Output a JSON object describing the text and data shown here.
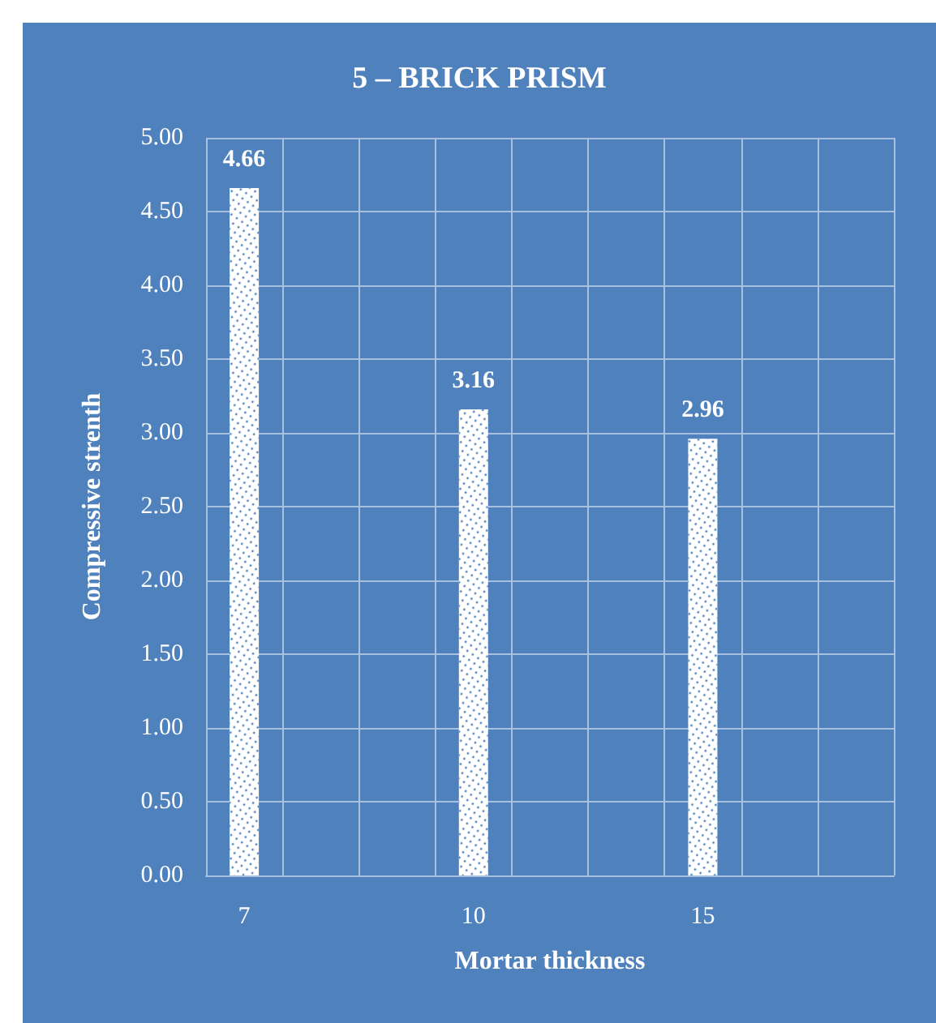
{
  "chart_data": {
    "type": "bar",
    "title": "5 – BRICK PRISM",
    "xlabel": "Mortar thickness",
    "ylabel": "Compressive strenth",
    "categories": [
      "7",
      null,
      null,
      "10",
      null,
      null,
      "15",
      null,
      null
    ],
    "values": [
      4.66,
      null,
      null,
      3.16,
      null,
      null,
      2.96,
      null,
      null
    ],
    "color": "#ffffff",
    "data_labels": true,
    "grid": true,
    "ylim": [
      0,
      5
    ],
    "yticks": [
      {
        "value": 0,
        "label": "0.00"
      },
      {
        "value": 0.5,
        "label": "0.50"
      },
      {
        "value": 1,
        "label": "1.00"
      },
      {
        "value": 1.5,
        "label": "1.50"
      },
      {
        "value": 2,
        "label": "2.00"
      },
      {
        "value": 2.5,
        "label": "2.50"
      },
      {
        "value": 3,
        "label": "3.00"
      },
      {
        "value": 3.5,
        "label": "3.50"
      },
      {
        "value": 4,
        "label": "4.00"
      },
      {
        "value": 4.5,
        "label": "4.50"
      },
      {
        "value": 5,
        "label": "5.00"
      }
    ]
  }
}
